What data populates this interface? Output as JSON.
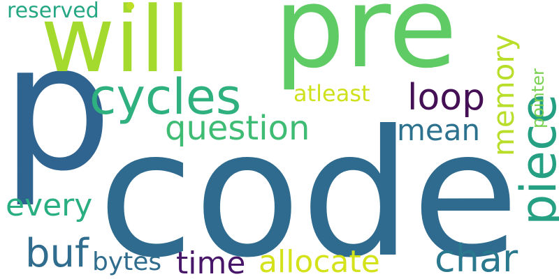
{
  "words": [
    {
      "id": "code",
      "text": "code",
      "color": "#2f6b8e"
    },
    {
      "id": "p",
      "text": "p",
      "color": "#306490"
    },
    {
      "id": "pre",
      "text": "pre",
      "color": "#5fcb64"
    },
    {
      "id": "will",
      "text": "will",
      "color": "#a4da2d"
    },
    {
      "id": "cycles",
      "text": "cycles",
      "color": "#2fb07f"
    },
    {
      "id": "piece",
      "text": "piece",
      "color": "#25a083"
    },
    {
      "id": "question",
      "text": "question",
      "color": "#3fbc73"
    },
    {
      "id": "loop",
      "text": "loop",
      "color": "#440f54"
    },
    {
      "id": "mean",
      "text": "mean",
      "color": "#2c728e"
    },
    {
      "id": "memory",
      "text": "memory",
      "color": "#b8de29"
    },
    {
      "id": "every",
      "text": "every",
      "color": "#28ae80"
    },
    {
      "id": "buf",
      "text": "buf",
      "color": "#2f6c8e"
    },
    {
      "id": "time",
      "text": "time",
      "color": "#481668"
    },
    {
      "id": "allocate",
      "text": "allocate",
      "color": "#d4e21a"
    },
    {
      "id": "char",
      "text": "char",
      "color": "#2a788e"
    },
    {
      "id": "bytes",
      "text": "bytes",
      "color": "#2f6c8e"
    },
    {
      "id": "atleast",
      "text": "atleast",
      "color": "#cfe11c"
    },
    {
      "id": "reserved",
      "text": "reserved",
      "color": "#26a784"
    },
    {
      "id": "pointer",
      "text": "pointer",
      "color": "#7ad151"
    }
  ],
  "marks": [
    {
      "id": "dot",
      "color": "#bddf26"
    }
  ]
}
